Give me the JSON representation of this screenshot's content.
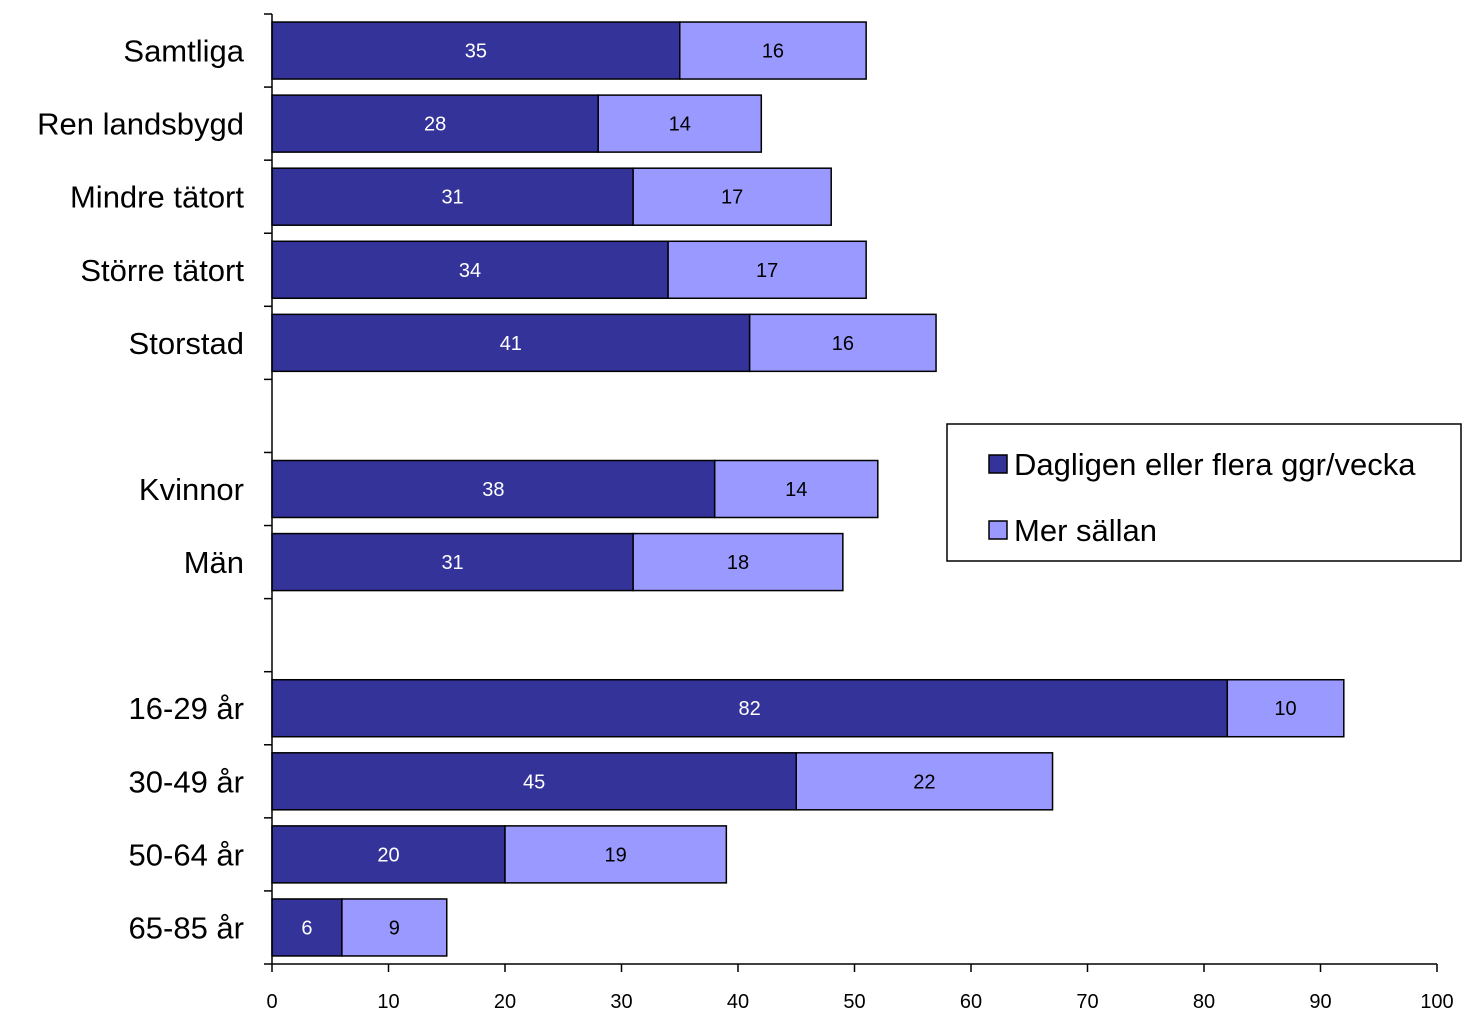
{
  "chart_data": {
    "type": "bar",
    "orientation": "horizontal",
    "stacked": true,
    "categories": [
      "Samtliga",
      "Ren landsbygd",
      "Mindre tätort",
      "Större tätort",
      "Storstad",
      "",
      "Kvinnor",
      "Män",
      "",
      "16-29 år",
      "30-49 år",
      "50-64 år",
      "65-85 år"
    ],
    "series": [
      {
        "name": "Dagligen eller flera ggr/vecka",
        "color": "#333399",
        "values": [
          35,
          28,
          31,
          34,
          41,
          null,
          38,
          31,
          null,
          82,
          45,
          20,
          6
        ]
      },
      {
        "name": "Mer sällan",
        "color": "#9999ff",
        "values": [
          16,
          14,
          17,
          17,
          16,
          null,
          14,
          18,
          null,
          10,
          22,
          19,
          9
        ]
      }
    ],
    "xlim": [
      0,
      100
    ],
    "x_ticks": [
      "0",
      "10",
      "20",
      "30",
      "40",
      "50",
      "60",
      "70",
      "80",
      "90",
      "100"
    ],
    "title": "",
    "xlabel": "",
    "ylabel": "",
    "grid": false,
    "legend_position": "right"
  }
}
